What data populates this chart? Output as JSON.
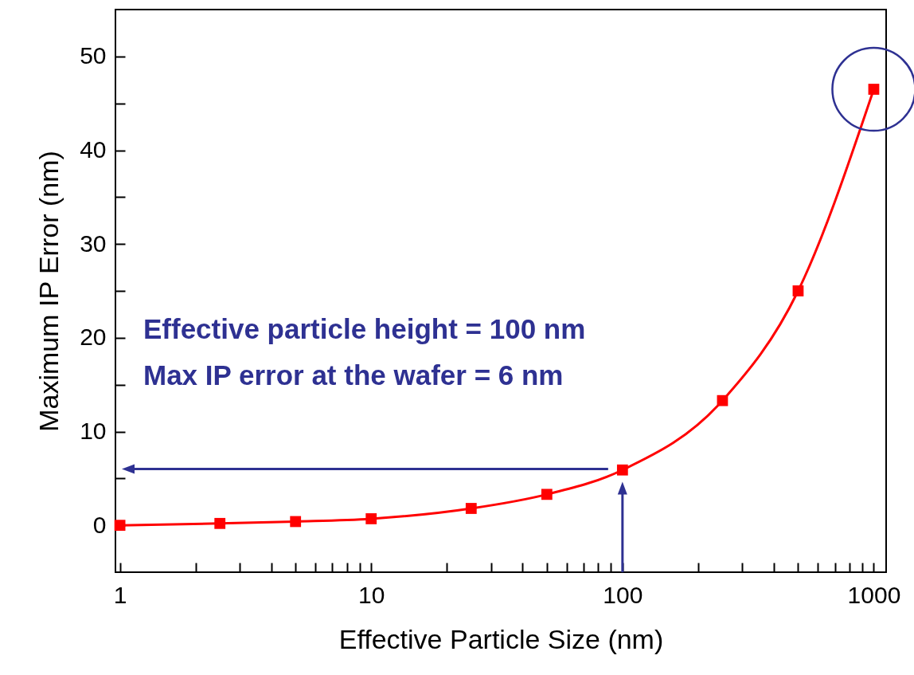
{
  "chart_data": {
    "type": "line",
    "xlabel": "Effective Particle Size (nm)",
    "ylabel": "Maximum IP Error (nm)",
    "x": [
      1,
      2.5,
      5,
      10,
      25,
      50,
      100,
      250,
      500,
      1000
    ],
    "series": [
      {
        "color": "#ff0000",
        "values": [
          0.0,
          0.2,
          0.4,
          0.7,
          1.8,
          3.3,
          5.9,
          13.3,
          25.0,
          46.5
        ]
      }
    ],
    "log": "x",
    "marker": "square",
    "xlim": [
      0.96,
      1120
    ],
    "ylim": [
      -5,
      55
    ],
    "xticks": [
      1,
      {
        "value": 2,
        "label": null
      },
      {
        "value": 3,
        "label": null
      },
      {
        "value": 4,
        "label": null
      },
      {
        "value": 5,
        "label": null
      },
      {
        "value": 6,
        "label": null
      },
      {
        "value": 7,
        "label": null
      },
      {
        "value": 8,
        "label": null
      },
      {
        "value": 9,
        "label": null
      },
      10,
      {
        "value": 20,
        "label": null
      },
      {
        "value": 30,
        "label": null
      },
      {
        "value": 40,
        "label": null
      },
      {
        "value": 50,
        "label": null
      },
      {
        "value": 60,
        "label": null
      },
      {
        "value": 70,
        "label": null
      },
      {
        "value": 80,
        "label": null
      },
      {
        "value": 90,
        "label": null
      },
      100,
      {
        "value": 200,
        "label": null
      },
      {
        "value": 300,
        "label": null
      },
      {
        "value": 400,
        "label": null
      },
      {
        "value": 500,
        "label": null
      },
      {
        "value": 600,
        "label": null
      },
      {
        "value": 700,
        "label": null
      },
      {
        "value": 800,
        "label": null
      },
      {
        "value": 900,
        "label": null
      },
      1000
    ],
    "yticks": [
      0,
      {
        "value": 5,
        "label": null
      },
      10,
      {
        "value": 15,
        "label": null
      },
      20,
      {
        "value": 25,
        "label": null
      },
      30,
      {
        "value": 35,
        "label": null
      },
      40,
      {
        "value": 45,
        "label": null
      },
      50
    ],
    "annotations": [
      "Effective particle height = 100 nm",
      "Max IP error at the wafer = 6 nm"
    ],
    "ref_lines": [
      {
        "axis": "y",
        "value": 6,
        "color": "#2e3192"
      },
      {
        "axis": "x",
        "value": 100,
        "color": "#2e3192"
      }
    ]
  }
}
